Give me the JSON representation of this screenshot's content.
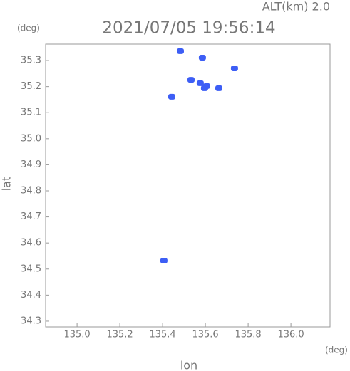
{
  "chart_data": {
    "type": "scatter",
    "title": "2021/07/05 19:56:14",
    "annotation": "ALT(km) 2.0",
    "x_label": "lon",
    "y_label": "lat",
    "x_unit": "(deg)",
    "y_unit": "(deg)",
    "xlim": [
      134.853,
      136.183
    ],
    "ylim": [
      34.278,
      35.363
    ],
    "xticks": [
      {
        "value": 135,
        "label": "135.0"
      },
      135.2,
      135.4,
      135.6,
      135.8,
      {
        "value": 136,
        "label": "136.0"
      }
    ],
    "yticks": [
      34.3,
      34.4,
      34.5,
      34.6,
      34.7,
      34.8,
      34.9,
      {
        "value": 35,
        "label": "35.0"
      },
      35.1,
      35.2,
      35.3
    ],
    "grid": false,
    "series": [
      {
        "color": "#3d5ef5",
        "x": [
          135.483,
          135.586,
          135.736,
          135.533,
          135.576,
          135.606,
          135.596,
          135.663,
          135.443,
          135.406
        ],
        "y": [
          35.336,
          35.311,
          35.27,
          35.226,
          35.213,
          35.202,
          35.194,
          35.194,
          35.161,
          34.532
        ]
      }
    ]
  }
}
